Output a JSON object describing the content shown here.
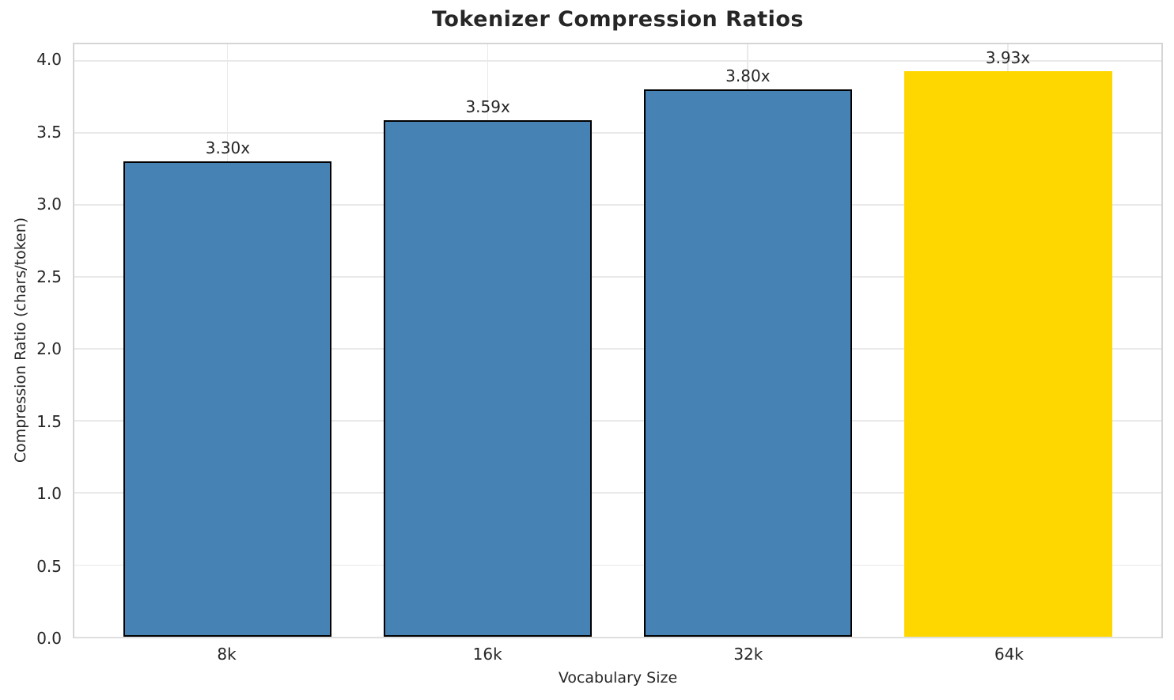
{
  "chart_data": {
    "type": "bar",
    "title": "Tokenizer Compression Ratios",
    "xlabel": "Vocabulary Size",
    "ylabel": "Compression Ratio (chars/token)",
    "categories": [
      "8k",
      "16k",
      "32k",
      "64k"
    ],
    "values": [
      3.3,
      3.59,
      3.8,
      3.93
    ],
    "bar_labels": [
      "3.30x",
      "3.59x",
      "3.80x",
      "3.93x"
    ],
    "bar_colors": [
      "#4682B4",
      "#4682B4",
      "#4682B4",
      "#FFD700"
    ],
    "bar_edge_colors": [
      "#000000",
      "#000000",
      "#000000",
      "none"
    ],
    "highlight_color": "#FFD700",
    "base_color": "#4682B4",
    "yticks": [
      0.0,
      0.5,
      1.0,
      1.5,
      2.0,
      2.5,
      3.0,
      3.5,
      4.0
    ],
    "ytick_labels": [
      "0.0",
      "0.5",
      "1.0",
      "1.5",
      "2.0",
      "2.5",
      "3.0",
      "3.5",
      "4.0"
    ],
    "ylim": [
      0,
      4.115
    ],
    "bar_width": 0.8,
    "x_edge_margin": 0.59,
    "grid": true,
    "grid_color": "#e9e9e9",
    "spine_color": "#d5d5d5",
    "text_color": "#262626",
    "legend": "none"
  }
}
